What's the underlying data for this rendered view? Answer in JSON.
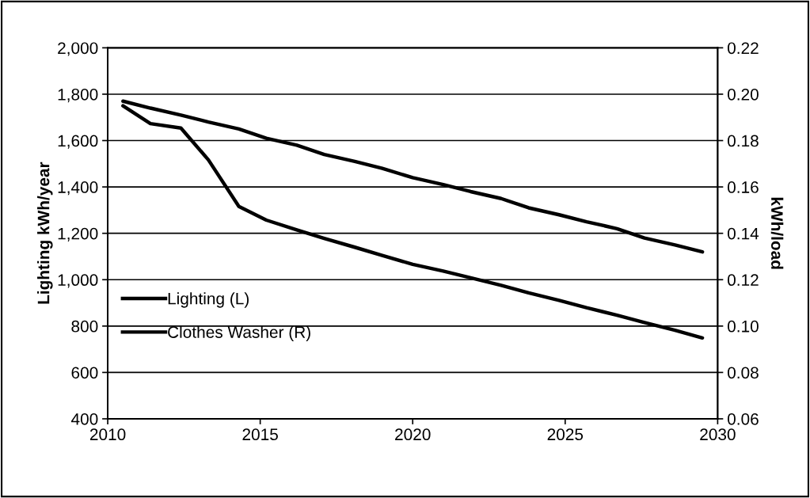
{
  "chart_data": {
    "type": "line",
    "x": [
      2010.5,
      2011.4,
      2012.4,
      2013.3,
      2014.3,
      2015.2,
      2016.2,
      2017.1,
      2018.1,
      2019.0,
      2020.0,
      2021.0,
      2021.9,
      2022.9,
      2023.8,
      2024.8,
      2025.7,
      2026.7,
      2027.6,
      2028.6,
      2029.5
    ],
    "series": [
      {
        "name": "Lighting (L)",
        "color": "#000000",
        "values": [
          1750,
          1673,
          1654,
          1517,
          1316,
          1257,
          1215,
          1178,
          1140,
          1105,
          1066,
          1037,
          1008,
          976,
          943,
          911,
          879,
          847,
          815,
          782,
          749
        ]
      },
      {
        "name": "Clothes Washer (R)",
        "color": "#000000",
        "axis": "y2",
        "values": [
          0.197,
          0.194,
          0.191,
          0.188,
          0.185,
          0.181,
          0.178,
          0.174,
          0.171,
          0.168,
          0.164,
          0.161,
          0.158,
          0.155,
          0.151,
          0.148,
          0.145,
          0.142,
          0.138,
          0.135,
          0.132
        ]
      }
    ],
    "ylabel": "Lighting kWh/year",
    "y2label": "kWh/load",
    "xlim": [
      2010,
      2030
    ],
    "xticks": [
      2010,
      2015,
      2020,
      2025,
      2030
    ],
    "ylim": [
      400,
      2000
    ],
    "yticks": [
      {
        "value": 400,
        "label": "400"
      },
      {
        "value": 600,
        "label": "600"
      },
      {
        "value": 800,
        "label": "800"
      },
      {
        "value": 1000,
        "label": "1,000"
      },
      {
        "value": 1200,
        "label": "1,200"
      },
      {
        "value": 1400,
        "label": "1,400"
      },
      {
        "value": 1600,
        "label": "1,600"
      },
      {
        "value": 1800,
        "label": "1,800"
      },
      {
        "value": 2000,
        "label": "2,000"
      }
    ],
    "y2lim": [
      0.06,
      0.22
    ],
    "y2ticks": [
      {
        "value": 0.06,
        "label": "0.06"
      },
      {
        "value": 0.08,
        "label": "0.08"
      },
      {
        "value": 0.1,
        "label": "0.10"
      },
      {
        "value": 0.12,
        "label": "0.12"
      },
      {
        "value": 0.14,
        "label": "0.14"
      },
      {
        "value": 0.16,
        "label": "0.16"
      },
      {
        "value": 0.18,
        "label": "0.18"
      },
      {
        "value": 0.2,
        "label": "0.20"
      },
      {
        "value": 0.22,
        "label": "0.22"
      }
    ],
    "grid": "y",
    "legend": "left",
    "marker": "none",
    "line_style": "solid"
  }
}
